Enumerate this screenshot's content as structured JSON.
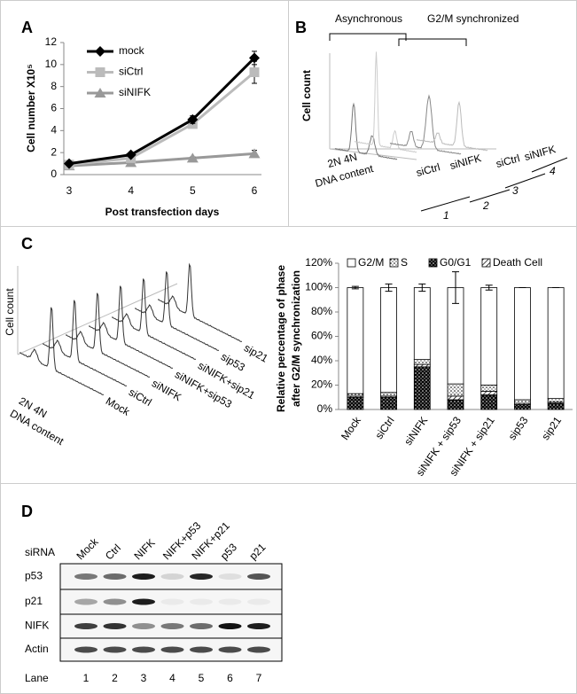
{
  "chart_data": [
    {
      "panel": "A",
      "type": "line",
      "categories": [
        "3",
        "4",
        "5",
        "6"
      ],
      "ylim": [
        0,
        12
      ],
      "yticks": [
        0,
        2,
        4,
        6,
        8,
        10,
        12
      ],
      "xlabel": "Post transfection days",
      "ylabel": "Cell number X10⁵",
      "legend": "top-left",
      "series": [
        {
          "name": "mock",
          "color": "#000000",
          "marker": "diamond",
          "values": [
            1.0,
            1.8,
            5.0,
            10.6
          ],
          "errors": [
            0.1,
            0.15,
            0.35,
            0.6
          ]
        },
        {
          "name": "siCtrl",
          "color": "#bbbbbb",
          "marker": "square",
          "values": [
            0.9,
            1.5,
            4.6,
            9.3
          ],
          "errors": [
            0.1,
            0.1,
            0.3,
            1.0
          ]
        },
        {
          "name": "siNIFK",
          "color": "#999999",
          "marker": "triangle",
          "values": [
            0.8,
            1.1,
            1.5,
            1.9
          ],
          "errors": [
            0.05,
            0.1,
            0.1,
            0.3
          ]
        }
      ]
    },
    {
      "panel": "C",
      "type": "stacked-bar",
      "categories": [
        "Mock",
        "siCtrl",
        "siNIFK",
        "siNIFK + sip53",
        "siNIFK + sip21",
        "sip53",
        "sip21"
      ],
      "ylim": [
        0,
        120
      ],
      "yticks": [
        {
          "value": 0,
          "label": "0%"
        },
        {
          "value": 20,
          "label": "20%"
        },
        {
          "value": 40,
          "label": "40%"
        },
        {
          "value": 60,
          "label": "60%"
        },
        {
          "value": 80,
          "label": "80%"
        },
        {
          "value": 100,
          "label": "100%"
        },
        {
          "value": 120,
          "label": "120%"
        }
      ],
      "ylabel": [
        "Relative percentage of  phase",
        "after G2/M synchronization"
      ],
      "legend": "top",
      "series": [
        {
          "name": "G2/M",
          "color": "#ffffff",
          "pattern": "none",
          "values": [
            87,
            86,
            59,
            79,
            80,
            92,
            91
          ],
          "errors": [
            1,
            3,
            3,
            13,
            2,
            0,
            0
          ]
        },
        {
          "name": "S",
          "color": "#ffffff",
          "pattern": "dots",
          "values": [
            2,
            3,
            4,
            10,
            5,
            3,
            3
          ]
        },
        {
          "name": "G0/G1",
          "color": "#000000",
          "pattern": "dots",
          "values": [
            10,
            10,
            35,
            8,
            12,
            4,
            5
          ]
        },
        {
          "name": "Death Cell",
          "color": "#ffffff",
          "pattern": "hatch",
          "values": [
            1,
            1,
            2,
            3,
            3,
            1,
            1
          ]
        }
      ]
    }
  ],
  "panel_b": {
    "panel": "B",
    "groups": [
      "Asynchronous",
      "G2/M synchronized"
    ],
    "ylabel": "Cell count",
    "xticks": "2N 4N",
    "xlabel": "DNA content",
    "traces": [
      "siCtrl",
      "siNIFK",
      "siCtrl",
      "siNIFK"
    ],
    "trace_numbers": [
      "1",
      "2",
      "3",
      "4"
    ]
  },
  "panel_c_histogram": {
    "ylabel": "Cell count",
    "xticks": "2N 4N",
    "xlabel": "DNA content",
    "traces": [
      "Mock",
      "siCtrl",
      "siNIFK",
      "siNIFK+sip53",
      "siNIFK+sip21",
      "sip53",
      "sip21"
    ]
  },
  "panel_d": {
    "panel": "D",
    "row_header": "siRNA",
    "lanes": [
      "Mock",
      "Ctrl",
      "NIFK",
      "NIFK+p53",
      "NIFK+p21",
      "p53",
      "p21"
    ],
    "proteins": [
      "p53",
      "p21",
      "NIFK",
      "Actin"
    ],
    "lane_label": "Lane",
    "lane_numbers": [
      "1",
      "2",
      "3",
      "4",
      "5",
      "6",
      "7"
    ]
  }
}
